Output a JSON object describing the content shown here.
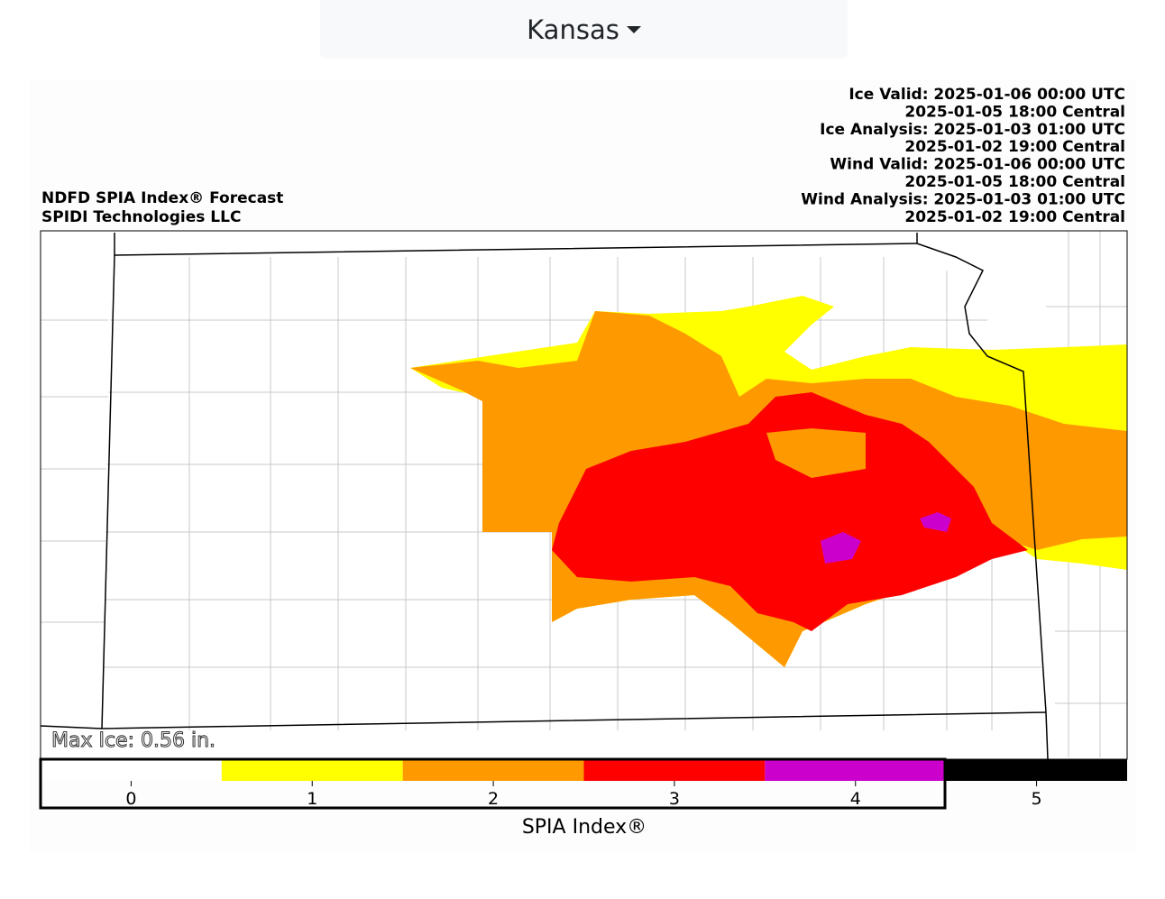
{
  "dropdown": {
    "label": "Kansas"
  },
  "map": {
    "title_lines": [
      "NDFD SPIA Index® Forecast",
      "SPIDI Technologies LLC"
    ],
    "valid_lines": [
      "Ice Valid: 2025-01-06 00:00 UTC",
      "2025-01-05 18:00 Central",
      "Ice Analysis: 2025-01-03 01:00 UTC",
      "2025-01-02 19:00 Central",
      "Wind Valid: 2025-01-06 00:00 UTC",
      "2025-01-05 18:00 Central",
      "Wind Analysis: 2025-01-03 01:00 UTC",
      "2025-01-02 19:00 Central"
    ],
    "max_ice": "Max Ice: 0.56 in."
  },
  "colorbar": {
    "ticks": [
      0,
      1,
      2,
      3,
      4,
      5
    ],
    "colors": [
      "#ffffff",
      "#ffff00",
      "#ff9900",
      "#ff0000",
      "#cc00cc",
      "#000000"
    ],
    "label": "SPIA Index®"
  }
}
